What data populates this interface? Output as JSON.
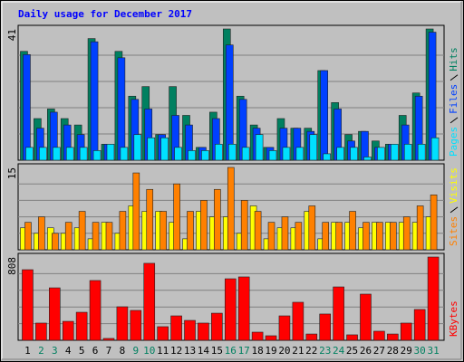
{
  "chart_data": [
    {
      "type": "bar",
      "title": "Daily usage for December 2017",
      "title_color": "#0000ff",
      "ylim": [
        0,
        41
      ],
      "yticks": [
        41
      ],
      "series": [
        {
          "name": "Hits",
          "color": "#008060",
          "values": [
            34,
            13,
            16,
            13,
            11,
            38,
            5,
            34,
            20,
            23,
            8,
            23,
            14,
            4,
            15,
            41,
            20,
            11,
            4,
            13,
            10,
            10,
            28,
            18,
            8,
            9,
            6,
            5,
            14,
            21,
            41
          ]
        },
        {
          "name": "Files",
          "color": "#0040ff",
          "values": [
            33,
            10,
            15,
            11,
            8,
            37,
            5,
            32,
            19,
            16,
            8,
            14,
            11,
            4,
            13,
            36,
            19,
            10,
            4,
            10,
            10,
            9,
            28,
            16,
            6,
            9,
            4,
            5,
            11,
            20,
            40
          ]
        },
        {
          "name": "Pages",
          "color": "#00e0ff",
          "values": [
            4,
            4,
            4,
            4,
            4,
            3,
            5,
            4,
            8,
            7,
            7,
            4,
            3,
            3,
            5,
            5,
            4,
            8,
            3,
            4,
            4,
            8,
            2,
            4,
            4,
            1,
            4,
            5,
            5,
            5,
            7
          ]
        }
      ]
    },
    {
      "type": "bar",
      "ylim": [
        0,
        15
      ],
      "yticks": [
        15
      ],
      "series": [
        {
          "name": "Visits",
          "color": "#ffff00",
          "values": [
            4,
            3,
            4,
            3,
            4,
            2,
            5,
            3,
            8,
            7,
            7,
            5,
            2,
            7,
            6,
            6,
            3,
            8,
            2,
            4,
            4,
            7,
            2,
            5,
            5,
            4,
            5,
            5,
            5,
            5,
            6
          ]
        },
        {
          "name": "Sites",
          "color": "#ff8000",
          "values": [
            5,
            6,
            3,
            5,
            7,
            5,
            5,
            7,
            14,
            11,
            7,
            12,
            7,
            9,
            11,
            15,
            9,
            7,
            5,
            6,
            5,
            8,
            5,
            5,
            7,
            5,
            5,
            5,
            6,
            8,
            10
          ]
        }
      ]
    },
    {
      "type": "bar",
      "ylim": [
        0,
        808
      ],
      "yticks": [
        808
      ],
      "categories": [
        "1",
        "2",
        "3",
        "4",
        "5",
        "6",
        "7",
        "8",
        "9",
        "10",
        "11",
        "12",
        "13",
        "14",
        "15",
        "16",
        "17",
        "18",
        "19",
        "20",
        "21",
        "22",
        "23",
        "24",
        "25",
        "26",
        "27",
        "28",
        "29",
        "30",
        "31"
      ],
      "highlighted_categories": [
        "2",
        "3",
        "9",
        "10",
        "16",
        "17",
        "23",
        "24",
        "30",
        "31"
      ],
      "highlight_color": "#008060",
      "series": [
        {
          "name": "KBytes",
          "color": "#ff0000",
          "values": [
            685,
            167,
            509,
            184,
            272,
            580,
            18,
            325,
            290,
            747,
            132,
            237,
            193,
            167,
            263,
            597,
            615,
            79,
            44,
            237,
            369,
            61,
            255,
            518,
            53,
            448,
            88,
            61,
            167,
            299,
            808
          ]
        }
      ]
    }
  ]
}
